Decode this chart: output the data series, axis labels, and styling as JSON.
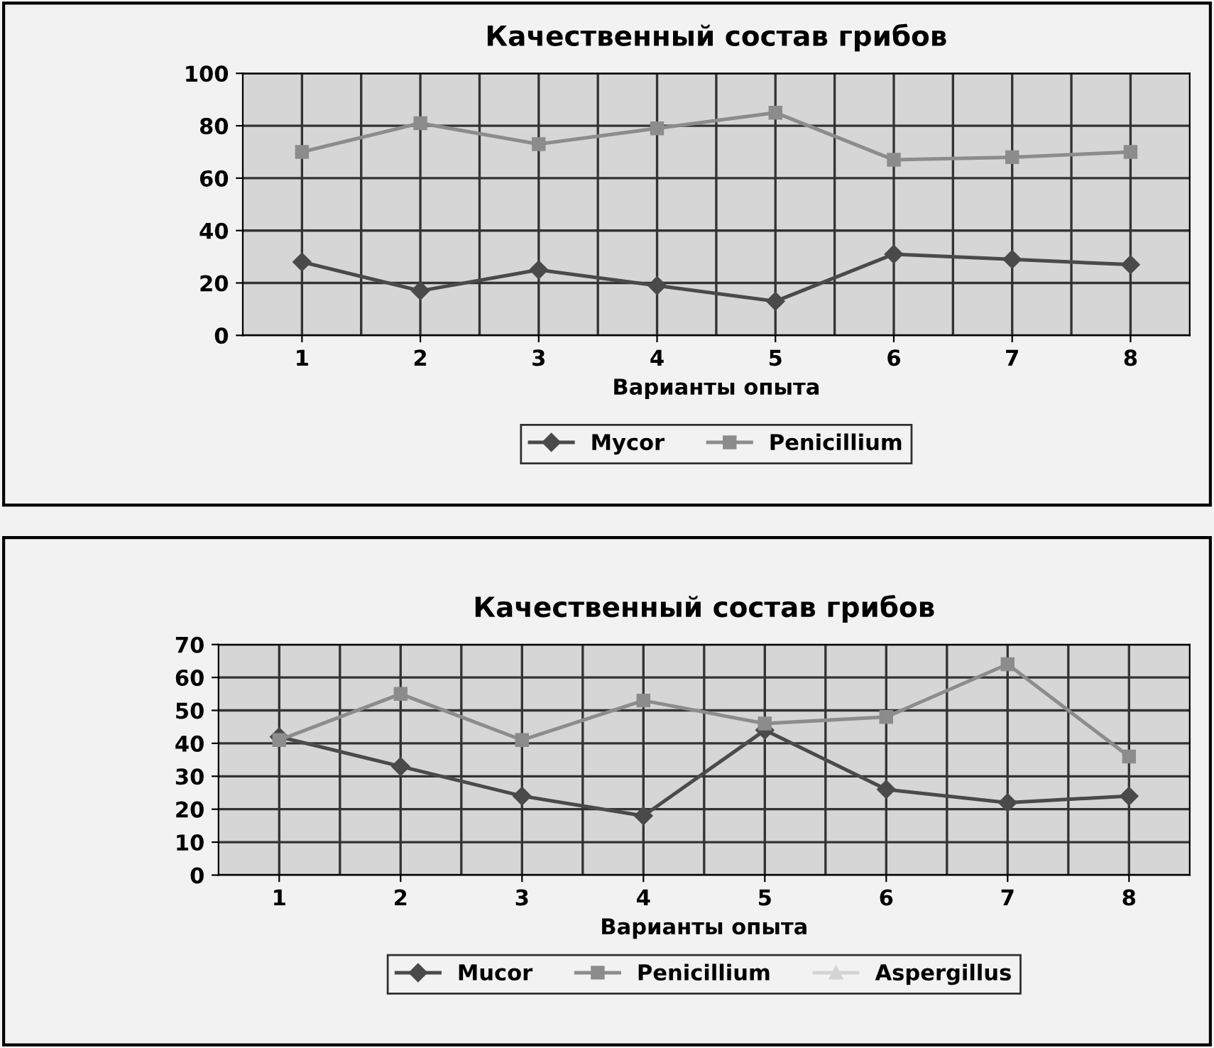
{
  "chart_data": [
    {
      "type": "line",
      "title": "Качественный состав грибов",
      "xlabel": "Варианты опыта",
      "categories": [
        "1",
        "2",
        "3",
        "4",
        "5",
        "6",
        "7",
        "8"
      ],
      "ylim": [
        0,
        100
      ],
      "yticks": [
        0,
        20,
        40,
        60,
        80,
        100
      ],
      "grid": true,
      "legend": "bottom",
      "series": [
        {
          "name": "Mycor",
          "color": "#4a4a4a",
          "marker": "diamond",
          "values": [
            28,
            17,
            25,
            19,
            13,
            31,
            29,
            27
          ]
        },
        {
          "name": "Penicillium",
          "color": "#8c8c8c",
          "marker": "square",
          "values": [
            70,
            81,
            73,
            79,
            85,
            67,
            68,
            70
          ]
        }
      ]
    },
    {
      "type": "line",
      "title": "Качественный состав грибов",
      "xlabel": "Варианты опыта",
      "categories": [
        "1",
        "2",
        "3",
        "4",
        "5",
        "6",
        "7",
        "8"
      ],
      "ylim": [
        0,
        70
      ],
      "yticks": [
        0,
        10,
        20,
        30,
        40,
        50,
        60,
        70
      ],
      "grid": true,
      "legend": "bottom",
      "series": [
        {
          "name": "Mucor",
          "color": "#4a4a4a",
          "marker": "diamond",
          "values": [
            42,
            33,
            24,
            18,
            44,
            26,
            22,
            24
          ]
        },
        {
          "name": "Penicillium",
          "color": "#8c8c8c",
          "marker": "square",
          "values": [
            41,
            55,
            41,
            53,
            46,
            48,
            64,
            36
          ]
        },
        {
          "name": "Aspergillus",
          "color": "#d4d4d4",
          "marker": "triangle",
          "values": [
            null,
            null,
            null,
            null,
            null,
            null,
            null,
            null
          ]
        }
      ]
    }
  ]
}
